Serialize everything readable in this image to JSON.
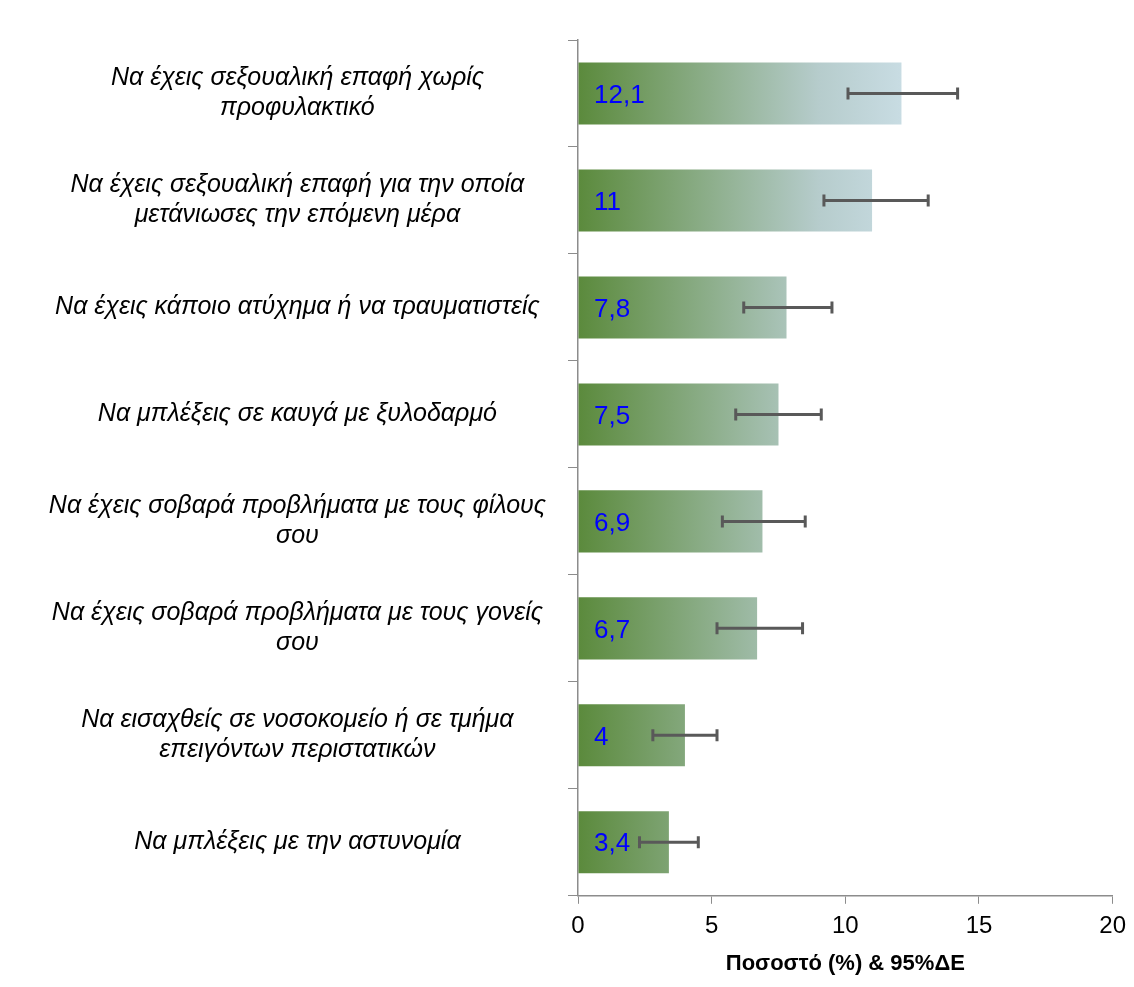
{
  "chart_data": {
    "type": "bar",
    "orientation": "horizontal",
    "xlabel": "Ποσοστό (%) & 95%ΔΕ",
    "categories": [
      "Να έχεις σεξουαλική επαφή χωρίς προφυλακτικό",
      "Να έχεις σεξουαλική επαφή για την οποία μετάνιωσες την επόμενη μέρα",
      "Να έχεις κάποιο ατύχημα ή να τραυματιστείς",
      "Να μπλέξεις σε καυγά με ξυλοδαρμό",
      "Να έχεις σοβαρά προβλήματα με τους φίλους σου",
      "Να έχεις σοβαρά προβλήματα με τους γονείς σου",
      "Να εισαχθείς σε νοσοκομείο ή σε τμήμα επειγόντων περιστατικών",
      "Να μπλέξεις με την αστυνομία"
    ],
    "values": [
      12.1,
      11,
      7.8,
      7.5,
      6.9,
      6.7,
      4,
      3.4
    ],
    "value_labels": [
      "12,1",
      "11",
      "7,8",
      "7,5",
      "6,9",
      "6,7",
      "4",
      "3,4"
    ],
    "errors": [
      [
        10.1,
        14.2
      ],
      [
        9.2,
        13.1
      ],
      [
        6.2,
        9.5
      ],
      [
        5.9,
        9.1
      ],
      [
        5.4,
        8.5
      ],
      [
        5.2,
        8.4
      ],
      [
        2.8,
        5.2
      ],
      [
        2.3,
        4.5
      ]
    ],
    "color": "#5b8a3c",
    "xlim": [
      0,
      20
    ],
    "xticks": [
      0,
      5,
      10,
      15,
      20
    ],
    "grid": false,
    "legend": false
  }
}
